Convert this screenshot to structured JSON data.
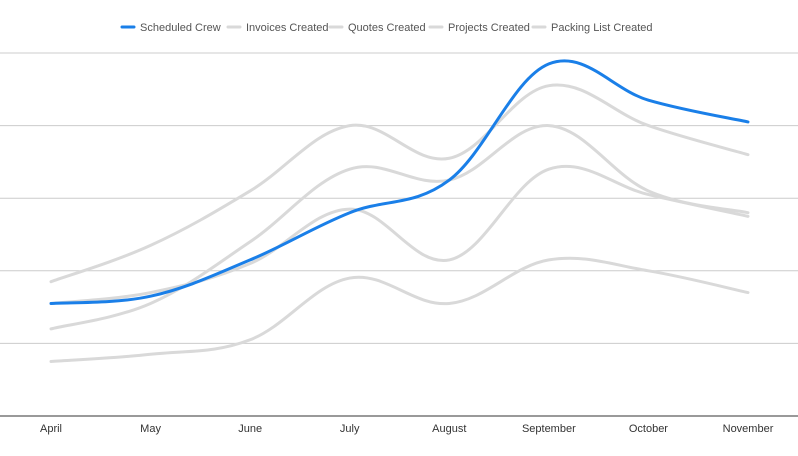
{
  "chart_data": {
    "type": "line",
    "title": "",
    "xlabel": "",
    "ylabel": "",
    "categories": [
      "April",
      "May",
      "June",
      "July",
      "August",
      "September",
      "October",
      "November"
    ],
    "ylim": [
      0,
      100
    ],
    "grid": true,
    "legend_position": "top",
    "smooth": true,
    "series": [
      {
        "name": "Scheduled Crew",
        "color": "#1a7fe8",
        "values": [
          31,
          33,
          43,
          56,
          65,
          97,
          87,
          81
        ]
      },
      {
        "name": "Invoices Created",
        "color": "#d9d9d9",
        "values": [
          31,
          34,
          42,
          57,
          43,
          68,
          61,
          55
        ]
      },
      {
        "name": "Quotes Created",
        "color": "#d9d9d9",
        "values": [
          37,
          47,
          62,
          80,
          71,
          91,
          80,
          72
        ]
      },
      {
        "name": "Projects Created",
        "color": "#d9d9d9",
        "values": [
          24,
          31,
          48,
          68,
          65,
          80,
          62,
          56
        ]
      },
      {
        "name": "Packing List Created",
        "color": "#d9d9d9",
        "values": [
          15,
          17,
          21,
          38,
          31,
          43,
          40,
          34
        ]
      }
    ]
  }
}
